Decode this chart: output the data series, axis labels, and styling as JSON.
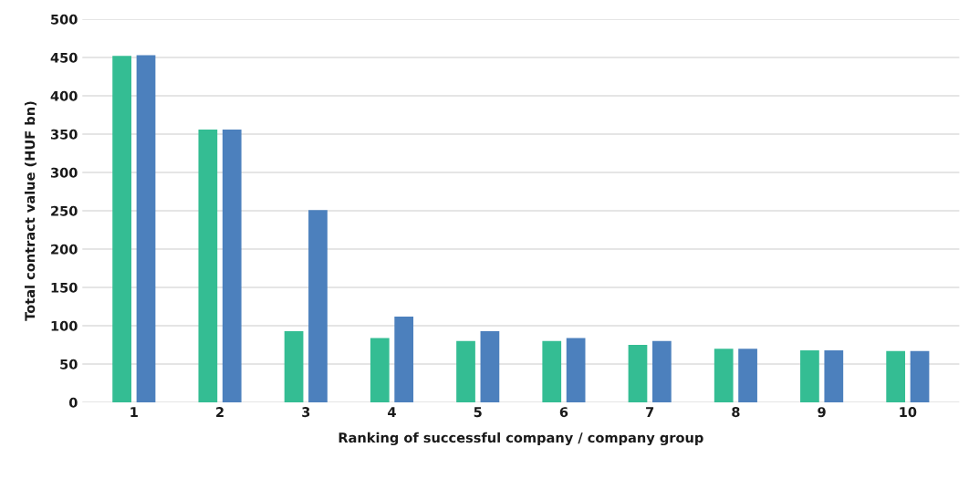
{
  "chart_data": {
    "type": "bar",
    "xlabel": "Ranking of successful company / company group",
    "ylabel": "Total contract value (HUF bn)",
    "categories": [
      "1",
      "2",
      "3",
      "4",
      "5",
      "6",
      "7",
      "8",
      "9",
      "10"
    ],
    "series": [
      {
        "color": "#34bd93",
        "values": [
          452,
          356,
          93,
          84,
          80,
          80,
          75,
          70,
          68,
          67
        ]
      },
      {
        "color": "#4c80bd",
        "values": [
          453,
          356,
          251,
          112,
          93,
          84,
          80,
          70,
          68,
          67
        ]
      }
    ],
    "ylim": [
      0,
      500
    ],
    "yticks": [
      0,
      50,
      100,
      150,
      200,
      250,
      300,
      350,
      400,
      450,
      500
    ],
    "grid": "y"
  }
}
